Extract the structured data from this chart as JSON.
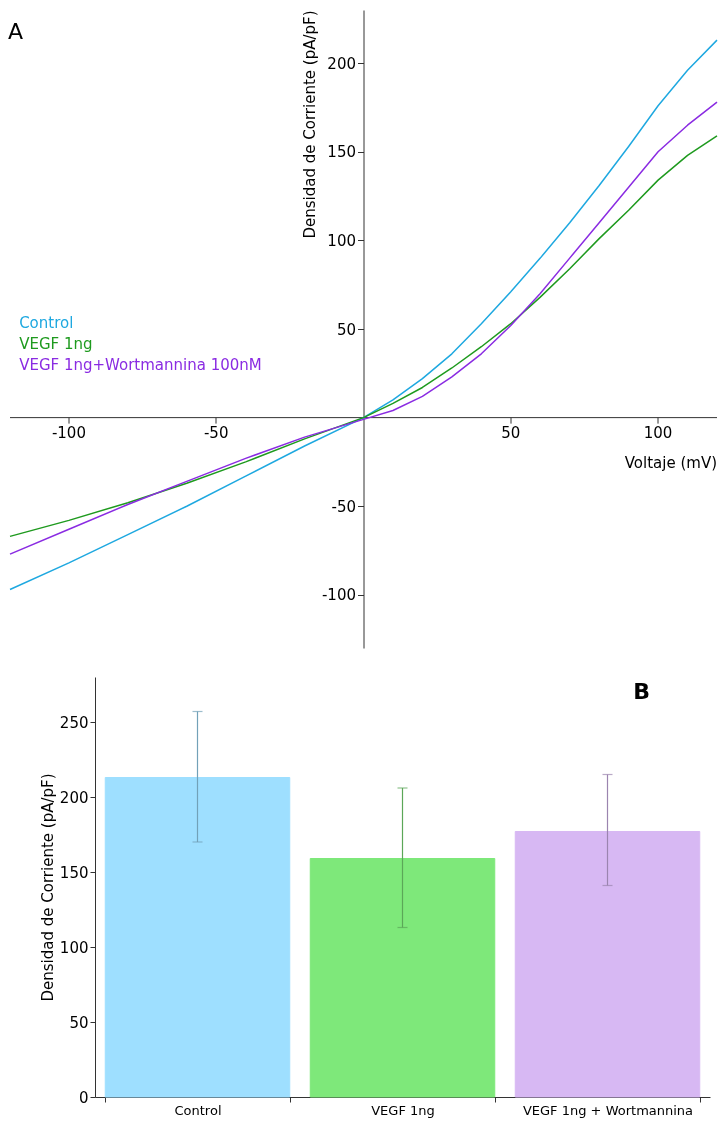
{
  "chart_data": [
    {
      "type": "line",
      "annotations": [
        "A"
      ],
      "xlabel": "Voltaje (mV)",
      "ylabel": "Densidad de Corriente (pA/pF)",
      "legend": "left",
      "x": [
        -120,
        -100,
        -80,
        -60,
        -40,
        -20,
        0,
        10,
        20,
        30,
        40,
        50,
        60,
        70,
        80,
        90,
        100,
        110,
        120
      ],
      "series": [
        {
          "name": "Control",
          "color": "#1ea8e0",
          "values": [
            -97,
            -82,
            -66,
            -50,
            -33,
            -16,
            0,
            10,
            22,
            36,
            53,
            71,
            90,
            110,
            131,
            153,
            176,
            196,
            213
          ]
        },
        {
          "name": "VEGF 1ng",
          "color": "#1e9a1e",
          "values": [
            -67,
            -58,
            -48,
            -37,
            -25,
            -12,
            0,
            8,
            17,
            28,
            40,
            53,
            68,
            84,
            101,
            117,
            134,
            148,
            159
          ]
        },
        {
          "name": "VEGF 1ng+Wortmannina 100nM",
          "color": "#8a2be2",
          "values": [
            -77,
            -63,
            -49,
            -36,
            -23,
            -11,
            -1,
            4,
            12,
            23,
            36,
            52,
            70,
            90,
            110,
            130,
            150,
            165,
            178
          ]
        }
      ],
      "xlim": [
        -120,
        120
      ],
      "ylim": [
        -130,
        230
      ],
      "xticks": [
        -100,
        -50,
        50,
        100
      ],
      "yticks": [
        -100,
        -50,
        50,
        100,
        150,
        200
      ]
    },
    {
      "type": "bar",
      "annotations": [
        "B"
      ],
      "ylabel": "Densidad de Corriente (pA/pF)",
      "categories": [
        "Control",
        "VEGF 1ng",
        "VEGF 1ng + Wortmannina"
      ],
      "values": [
        213,
        159,
        177
      ],
      "colors": [
        "#9edfff",
        "#7ee87a",
        "#d7b8f3"
      ],
      "errors": [
        [
          170,
          257
        ],
        [
          113,
          206
        ],
        [
          141,
          215
        ]
      ],
      "ylim": [
        0,
        280
      ],
      "yticks": [
        0,
        50,
        100,
        150,
        200,
        250
      ]
    }
  ]
}
